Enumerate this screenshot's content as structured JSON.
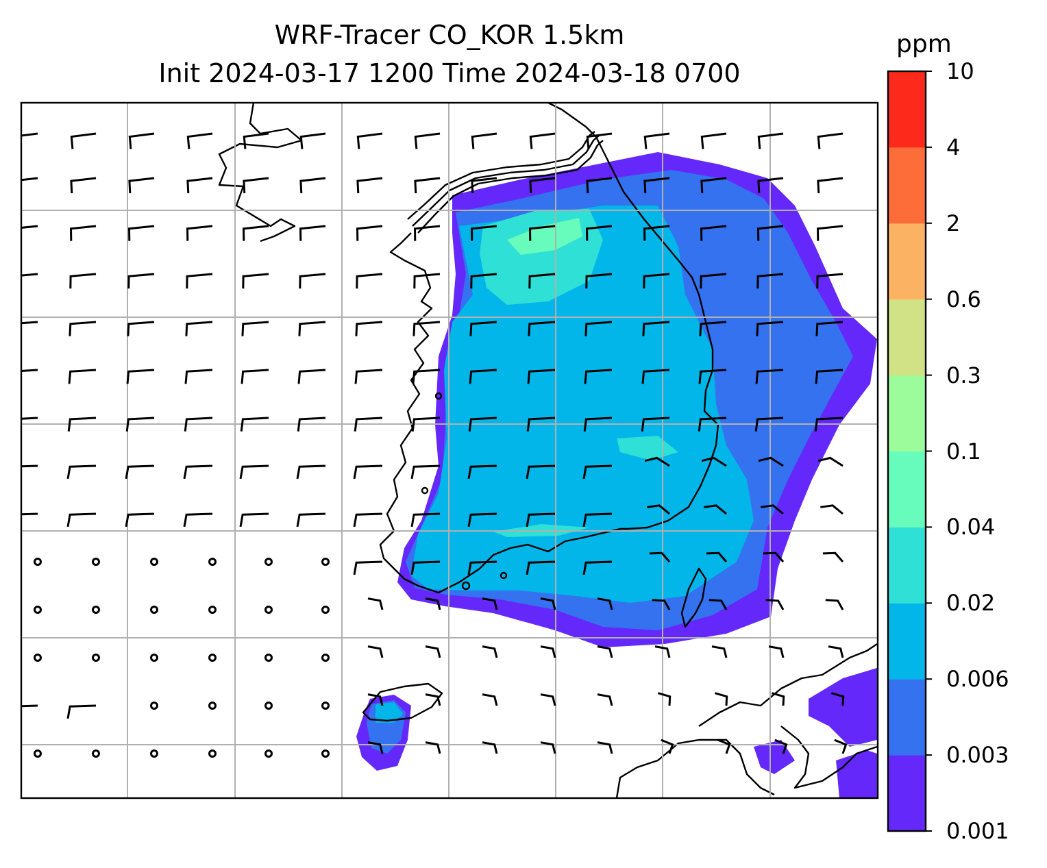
{
  "title": {
    "line1": "WRF-Tracer CO_KOR 1.5km",
    "line2": "Init 2024-03-17 1200 Time 2024-03-18 0700"
  },
  "colorbar": {
    "unit": "ppm",
    "levels": [
      "0.001",
      "0.003",
      "0.006",
      "0.02",
      "0.04",
      "0.1",
      "0.3",
      "0.6",
      "2",
      "4",
      "10"
    ],
    "colors": [
      "#6429fa",
      "#3472f0",
      "#02b6ea",
      "#2ee0d6",
      "#68fcbc",
      "#9cfc9c",
      "#d1e286",
      "#fcb263",
      "#fd6d39",
      "#fd2a1c"
    ]
  },
  "map": {
    "grid_color": "#b0b0b0",
    "coast_color": "#000000",
    "wind_barb_color": "#000000"
  }
}
